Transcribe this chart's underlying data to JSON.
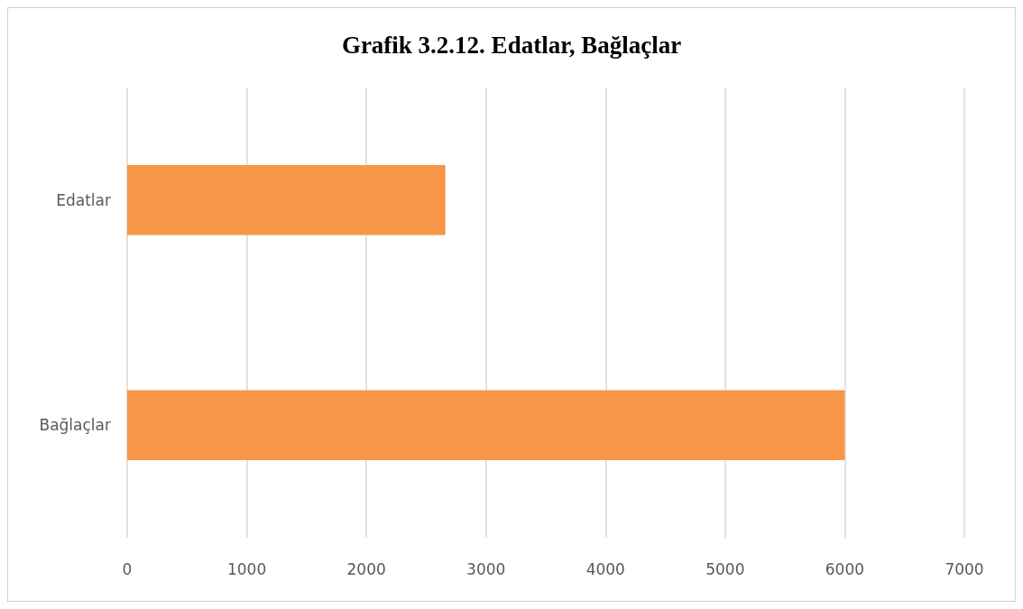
{
  "chart_data": {
    "type": "bar",
    "orientation": "horizontal",
    "title": "Grafik 3.2.12. Edatlar, Bağlaçlar",
    "categories": [
      "Edatlar",
      "Bağlaçlar"
    ],
    "values": [
      2660,
      6000
    ],
    "color": "#f79646",
    "xlim": [
      0,
      7000
    ],
    "xticks": [
      0,
      1000,
      2000,
      3000,
      4000,
      5000,
      6000,
      7000
    ],
    "grid": "x"
  }
}
